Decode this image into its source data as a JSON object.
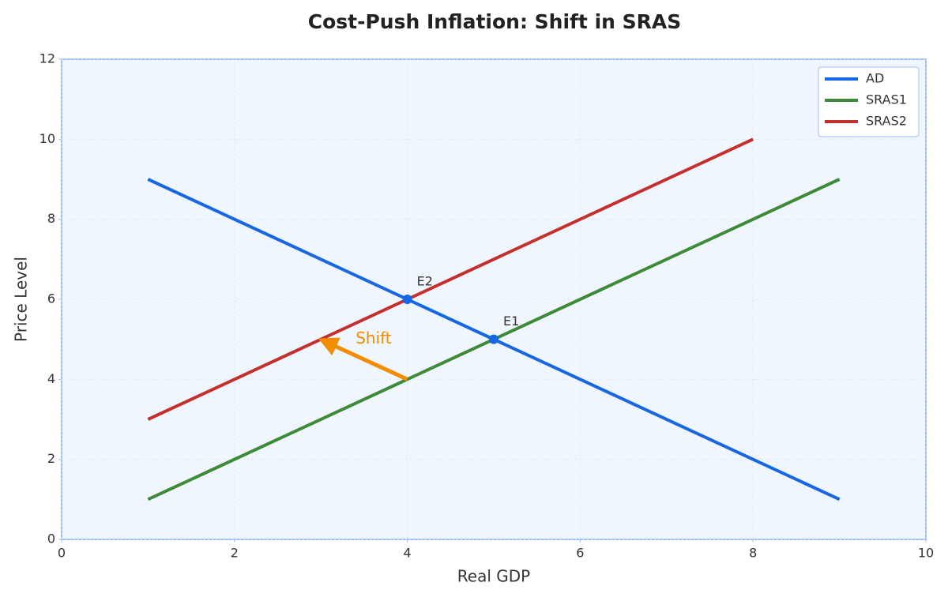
{
  "chart_data": {
    "type": "line",
    "title": "Cost-Push Inflation: Shift in SRAS",
    "x_label": "Real GDP",
    "y_label": "Price Level",
    "xlim": [
      0,
      10
    ],
    "ylim": [
      0,
      12
    ],
    "xticks": [
      0,
      2,
      4,
      6,
      8,
      10
    ],
    "yticks": [
      0,
      2,
      4,
      6,
      8,
      10,
      12
    ],
    "grid": true,
    "legend": "upper right",
    "series": [
      {
        "name": "AD",
        "color": "#1766e3",
        "x": [
          1,
          9
        ],
        "values": [
          9,
          1
        ]
      },
      {
        "name": "SRAS1",
        "color": "#3f8a3a",
        "x": [
          1,
          9
        ],
        "values": [
          1,
          9
        ]
      },
      {
        "name": "SRAS2",
        "color": "#c3302f",
        "x": [
          1,
          8
        ],
        "values": [
          3,
          10
        ]
      }
    ],
    "points": [
      {
        "label": "E2",
        "x": 4,
        "y": 6,
        "color": "#1766e3"
      },
      {
        "label": "E1",
        "x": 5,
        "y": 5,
        "color": "#1766e3"
      }
    ],
    "arrow": {
      "text": "Shift",
      "color": "#f28c00",
      "from": [
        4,
        4
      ],
      "to": [
        3,
        5
      ]
    }
  }
}
